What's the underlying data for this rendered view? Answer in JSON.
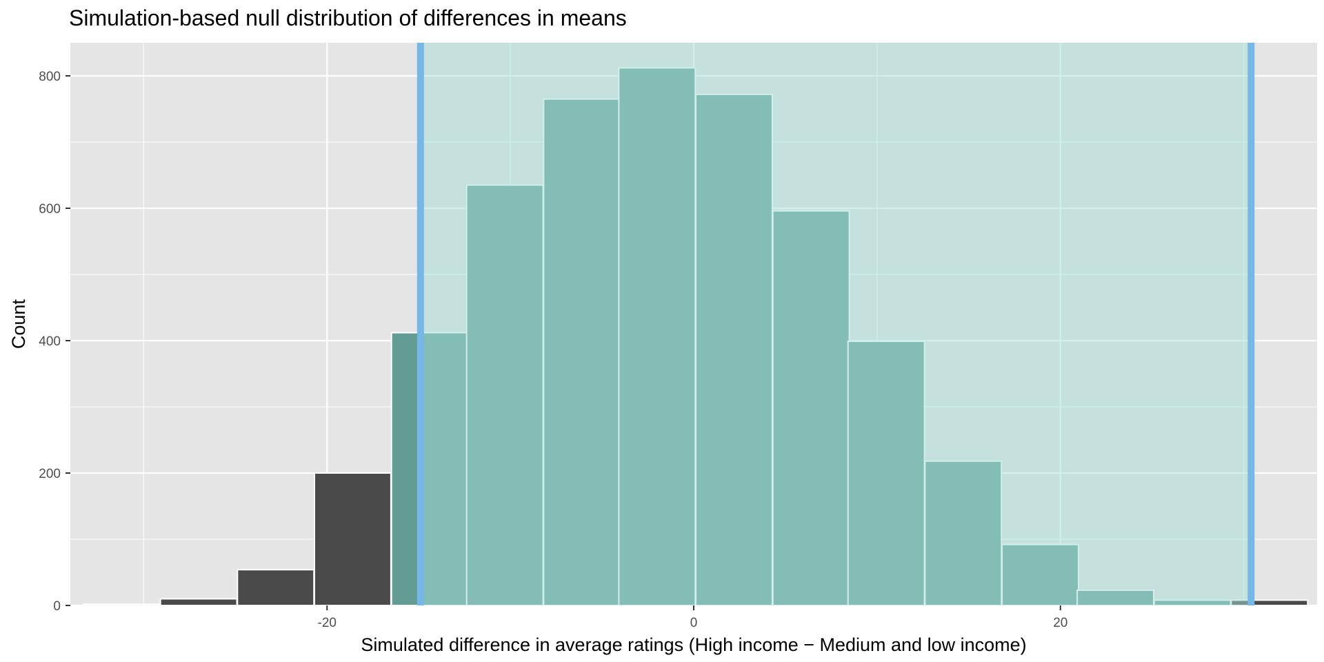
{
  "chart_data": {
    "type": "bar",
    "title": "Simulation-based null distribution of differences in means",
    "xlabel": "Simulated difference in average ratings (High income − Medium and low income)",
    "ylabel": "Count",
    "xlim": [
      -34,
      34
    ],
    "ylim": [
      0,
      850
    ],
    "xticks": [
      -20,
      0,
      20
    ],
    "xtick_labels": [
      "-20",
      "0",
      "20"
    ],
    "yticks": [
      0,
      200,
      400,
      600,
      800
    ],
    "ytick_labels": [
      "0",
      "200",
      "400",
      "600",
      "800"
    ],
    "bin_width": 4.17,
    "bin_centers": [
      -31.2,
      -27.0,
      -22.8,
      -18.6,
      -14.4,
      -10.3,
      -6.1,
      -2.0,
      2.2,
      6.4,
      10.5,
      14.7,
      18.9,
      23.0,
      27.2,
      31.4
    ],
    "values": [
      2,
      10,
      54,
      200,
      412,
      635,
      765,
      812,
      772,
      596,
      399,
      218,
      92,
      23,
      8,
      8
    ],
    "shade_range": [
      -14.9,
      30.4
    ],
    "grid": true,
    "colors": {
      "panel_bg": "#e5e5e5",
      "grid": "#ffffff",
      "bar_outside": "#4a4a4a",
      "bar_inside": "#629c94",
      "bar_outline": "#ffffff",
      "shade_fill": "#a4ddd7",
      "shade_line": "#76b7e5"
    }
  }
}
